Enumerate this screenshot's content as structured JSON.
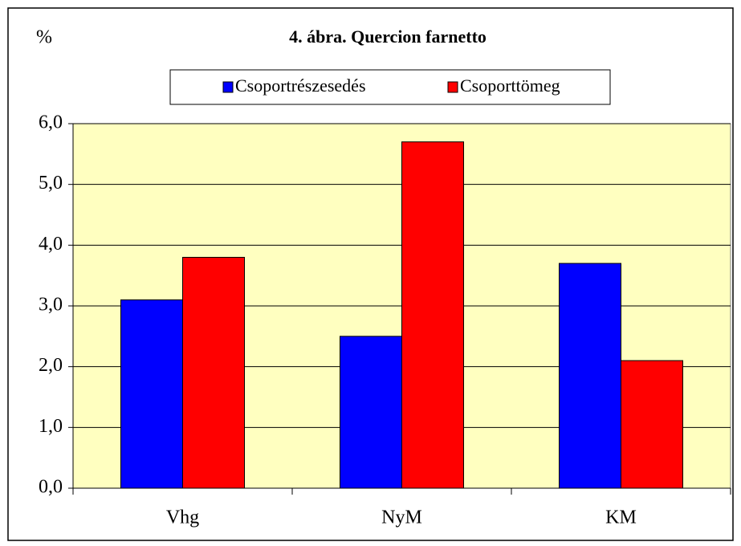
{
  "chart_data": {
    "type": "bar",
    "title": "4. ábra. Quercion farnetto",
    "y_label": "%",
    "categories": [
      "Vhg",
      "NyM",
      "KM"
    ],
    "series": [
      {
        "name": "Csoportrészesedés",
        "color": "#0000ff",
        "values": [
          3.1,
          2.5,
          3.7
        ]
      },
      {
        "name": "Csoporttömeg",
        "color": "#ff0000",
        "values": [
          3.8,
          5.7,
          2.1
        ]
      }
    ],
    "ylim": [
      0,
      6
    ],
    "yticks": [
      {
        "value": 0,
        "label": "0,0"
      },
      {
        "value": 1,
        "label": "1,0"
      },
      {
        "value": 2,
        "label": "2,0"
      },
      {
        "value": 3,
        "label": "3,0"
      },
      {
        "value": 4,
        "label": "4,0"
      },
      {
        "value": 5,
        "label": "5,0"
      },
      {
        "value": 6,
        "label": "6,0"
      }
    ],
    "grid": true,
    "background": "#ffffc0"
  }
}
